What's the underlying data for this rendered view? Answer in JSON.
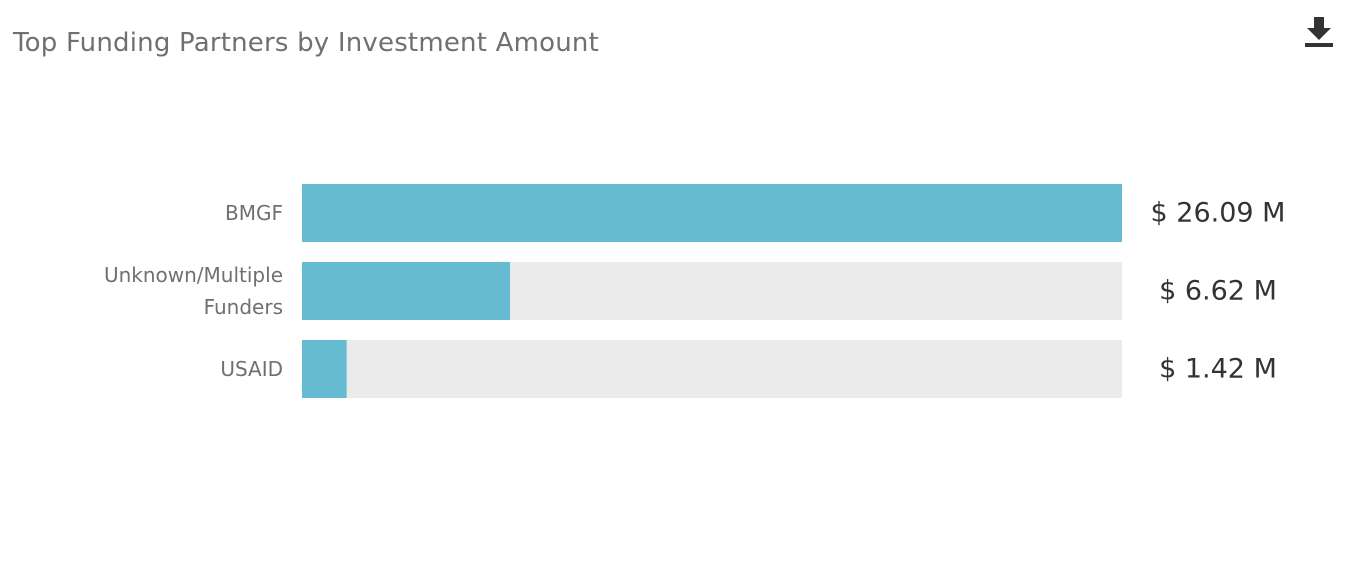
{
  "header": {
    "title": "Top Funding Partners by Investment Amount",
    "download_icon": "download-icon"
  },
  "colors": {
    "bar": "#67bbd0",
    "track": "#ebebeb",
    "category_text": "#707070",
    "value_text": "#333333",
    "icon": "#333333"
  },
  "chart_data": {
    "type": "bar",
    "orientation": "horizontal",
    "title": "Top Funding Partners by Investment Amount",
    "categories": [
      "BMGF",
      "Unknown/Multiple Funders",
      "USAID"
    ],
    "category_lines": [
      [
        "BMGF"
      ],
      [
        "Unknown/Multiple",
        "Funders"
      ],
      [
        "USAID"
      ]
    ],
    "values": [
      26.09,
      6.62,
      1.42
    ],
    "value_labels": [
      "$ 26.09 M",
      "$ 6.62 M",
      "$ 1.42 M"
    ],
    "unit": "M",
    "xlim": [
      0,
      26.09
    ],
    "grid": false,
    "legend": "none"
  }
}
